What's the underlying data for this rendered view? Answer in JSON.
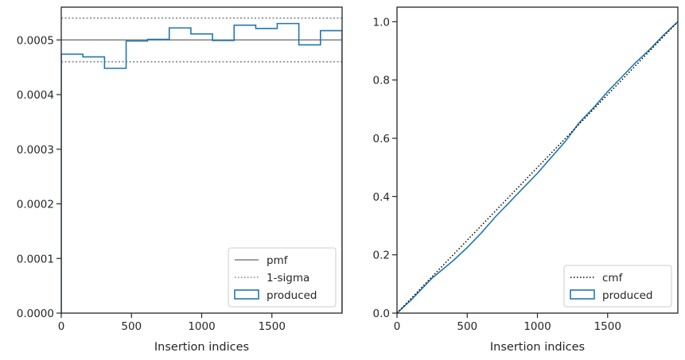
{
  "chart_data": [
    {
      "type": "step",
      "xlabel": "Insertion indices",
      "ylabel": "",
      "xlim": [
        0,
        2000
      ],
      "ylim": [
        0,
        0.00056
      ],
      "xticks": [
        0,
        500,
        1000,
        1500
      ],
      "xtick_labels": [
        "0",
        "500",
        "1000",
        "1500"
      ],
      "yticks": [
        0,
        0.0001,
        0.0002,
        0.0003,
        0.0004,
        0.0005
      ],
      "ytick_labels": [
        "0.0000",
        "0.0001",
        "0.0002",
        "0.0003",
        "0.0004",
        "0.0005"
      ],
      "legend_position": "lower-right",
      "grid": false,
      "reference_lines": [
        {
          "name": "pmf",
          "y": 0.0005,
          "style": "solid",
          "color": "#808080"
        },
        {
          "name": "1-sigma",
          "y": 0.00054,
          "style": "dotted",
          "color": "#808080"
        },
        {
          "name": "1-sigma",
          "y": 0.00046,
          "style": "dotted",
          "color": "#808080"
        }
      ],
      "series": [
        {
          "name": "produced",
          "color": "#1f77b4",
          "bin_edges": [
            0,
            154,
            308,
            462,
            615,
            769,
            923,
            1077,
            1231,
            1385,
            1538,
            1692,
            1846,
            2000
          ],
          "values": [
            0.000474,
            0.000469,
            0.000448,
            0.000498,
            0.000501,
            0.000522,
            0.000511,
            0.000499,
            0.000527,
            0.000521,
            0.00053,
            0.000491,
            0.000517
          ]
        }
      ],
      "legend": [
        {
          "label": "pmf",
          "style": "solid-line",
          "color": "#808080"
        },
        {
          "label": "1-sigma",
          "style": "dotted-line",
          "color": "#808080"
        },
        {
          "label": "produced",
          "style": "box",
          "color": "#1f77b4"
        }
      ]
    },
    {
      "type": "line",
      "xlabel": "Insertion indices",
      "ylabel": "",
      "xlim": [
        0,
        2000
      ],
      "ylim": [
        0,
        1.05
      ],
      "xticks": [
        0,
        500,
        1000,
        1500
      ],
      "xtick_labels": [
        "0",
        "500",
        "1000",
        "1500"
      ],
      "yticks": [
        0,
        0.2,
        0.4,
        0.6,
        0.8,
        1.0
      ],
      "ytick_labels": [
        "0.0",
        "0.2",
        "0.4",
        "0.6",
        "0.8",
        "1.0"
      ],
      "legend_position": "lower-right",
      "grid": false,
      "series": [
        {
          "name": "cmf",
          "color": "#000000",
          "style": "dotted",
          "x": [
            0,
            2000
          ],
          "y": [
            0,
            1.0
          ]
        },
        {
          "name": "produced",
          "color": "#1f77b4",
          "style": "solid",
          "x": [
            0,
            100,
            250,
            400,
            500,
            600,
            700,
            800,
            900,
            1000,
            1100,
            1200,
            1300,
            1400,
            1500,
            1600,
            1700,
            1800,
            1900,
            2000
          ],
          "y": [
            0,
            0.045,
            0.12,
            0.18,
            0.225,
            0.275,
            0.33,
            0.38,
            0.43,
            0.48,
            0.535,
            0.59,
            0.655,
            0.705,
            0.76,
            0.81,
            0.86,
            0.905,
            0.955,
            1.0
          ]
        }
      ],
      "legend": [
        {
          "label": "cmf",
          "style": "dotted-line",
          "color": "#000000"
        },
        {
          "label": "produced",
          "style": "box",
          "color": "#1f77b4"
        }
      ]
    }
  ]
}
